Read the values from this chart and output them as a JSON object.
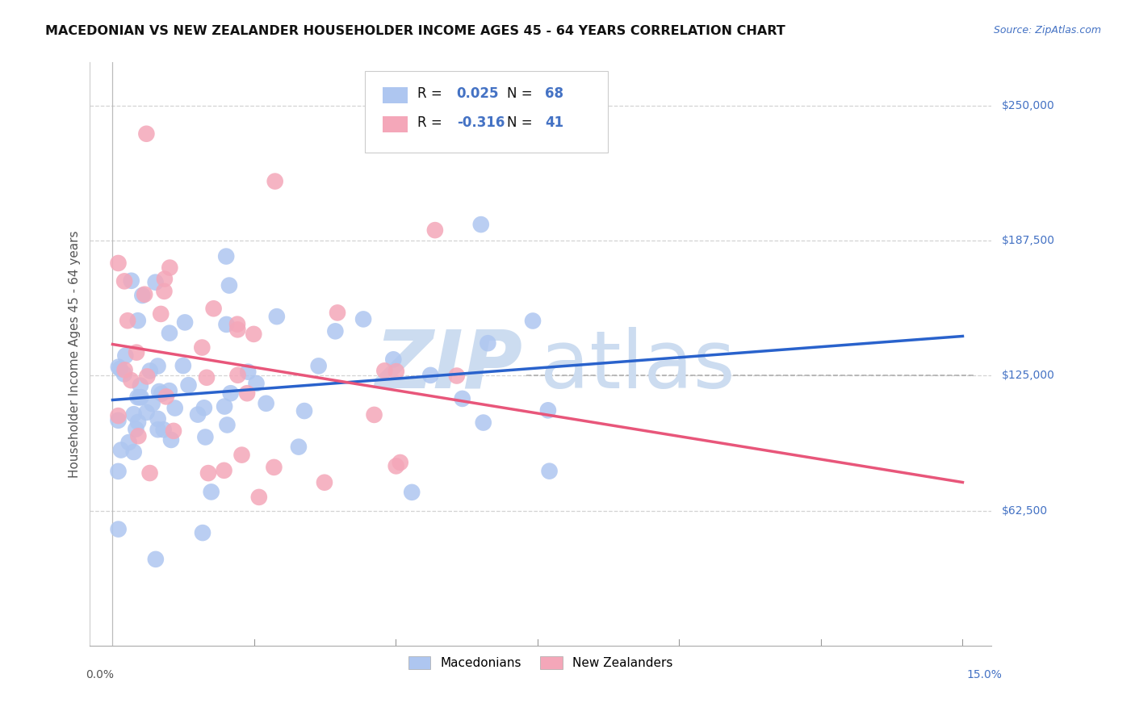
{
  "title": "MACEDONIAN VS NEW ZEALANDER HOUSEHOLDER INCOME AGES 45 - 64 YEARS CORRELATION CHART",
  "source": "Source: ZipAtlas.com",
  "ylabel": "Householder Income Ages 45 - 64 years",
  "legend_labels": [
    "Macedonians",
    "New Zealanders"
  ],
  "legend_r_mac": "R =  0.025",
  "legend_n_mac": "N = 68",
  "legend_r_nz": "R = -0.316",
  "legend_n_nz": "N =  41",
  "mac_color": "#aec6f0",
  "nz_color": "#f4a7b9",
  "mac_line_color": "#2962cc",
  "nz_line_color": "#e8567a",
  "watermark_color": "#ccdcf0",
  "xlim": [
    0.0,
    0.15
  ],
  "ylim": [
    0,
    270000
  ],
  "ytick_values": [
    62500,
    125000,
    187500,
    250000
  ],
  "ytick_labels": [
    "$62,500",
    "$125,000",
    "$187,500",
    "$250,000"
  ]
}
